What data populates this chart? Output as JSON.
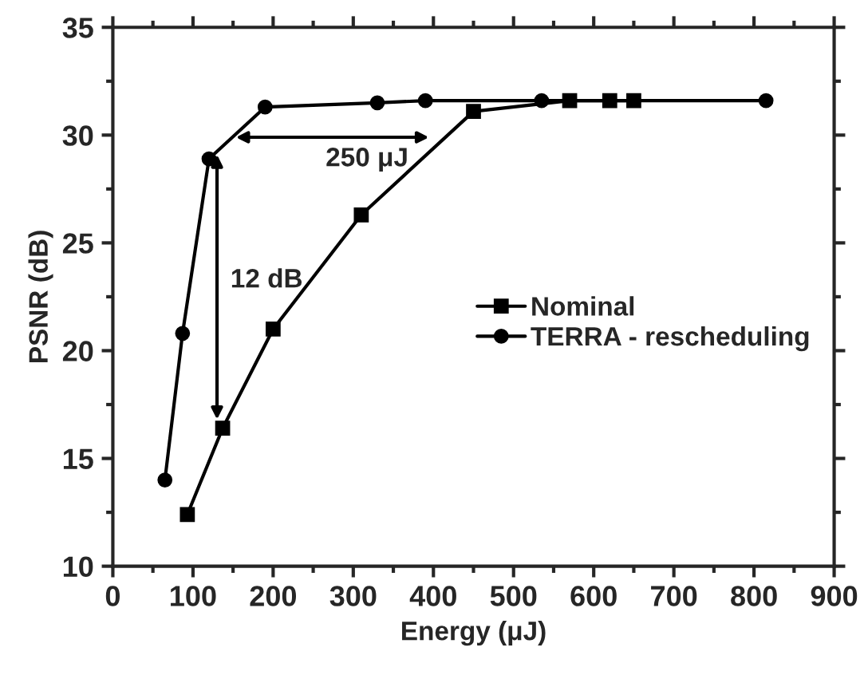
{
  "chart_data": {
    "type": "line",
    "xlabel": "Energy (μJ)",
    "ylabel": "PSNR (dB)",
    "xlim": [
      0,
      900
    ],
    "xticks": [
      0,
      100,
      200,
      300,
      400,
      500,
      600,
      700,
      800,
      900
    ],
    "ylim": [
      10,
      35
    ],
    "yticks": [
      10,
      15,
      20,
      25,
      30,
      35
    ],
    "series": [
      {
        "name": "Nominal",
        "color": "#000000",
        "marker": "square",
        "x": [
          93,
          137,
          200,
          310,
          450,
          570,
          620,
          650
        ],
        "values": [
          12.4,
          16.4,
          21.0,
          26.3,
          31.1,
          31.6,
          31.6,
          31.6
        ]
      },
      {
        "name": "TERRA - rescheduling",
        "color": "#000000",
        "marker": "circle",
        "x": [
          65,
          87,
          120,
          190,
          330,
          390,
          535,
          815
        ],
        "values": [
          14.0,
          20.8,
          28.9,
          31.3,
          31.5,
          31.6,
          31.6,
          31.6
        ]
      }
    ],
    "annotations": [
      "12 dB",
      "250 μJ"
    ],
    "legend": "right",
    "grid": false,
    "line_style": "solid"
  }
}
